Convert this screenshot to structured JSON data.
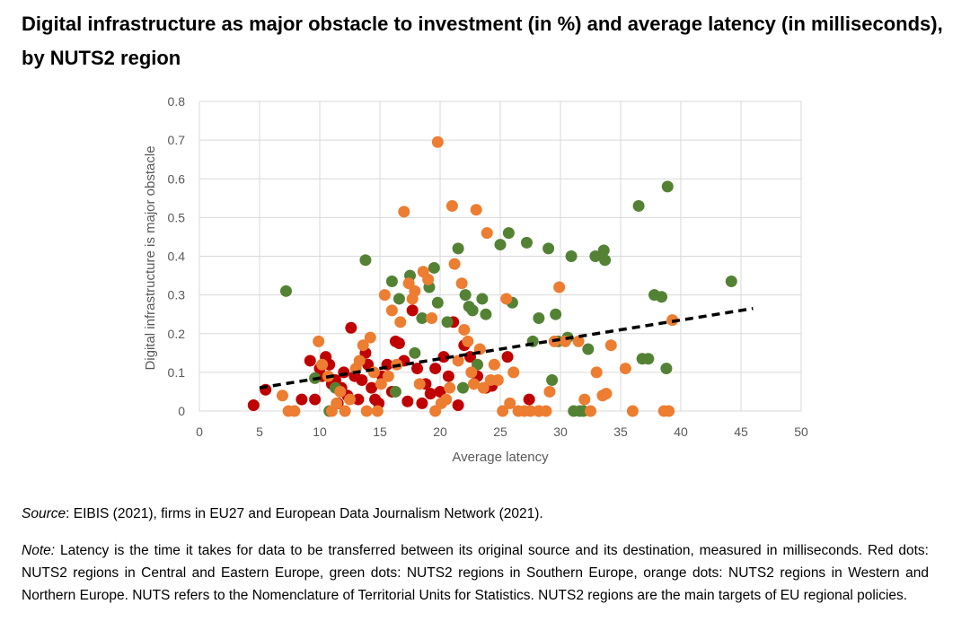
{
  "title": "Digital infrastructure as major obstacle to investment (in %) and average latency (in milliseconds), by NUTS2 region",
  "source": {
    "label": "Source",
    "text": ": EIBIS (2021), firms in EU27 and European Data Journalism Network (2021)."
  },
  "note": {
    "label": "Note:",
    "text": " Latency is the time it takes for data to be transferred between its original source and its destination, measured in milliseconds. Red dots: NUTS2 regions in Central and Eastern Europe, green dots: NUTS2 regions in Southern Europe, orange dots: NUTS2 regions in Western and Northern Europe. NUTS refers to the Nomenclature of Territorial Units for Statistics. NUTS2 regions are the main targets of EU regional policies."
  },
  "chart_data": {
    "type": "scatter",
    "xlabel": "Average latency",
    "ylabel": "Digital infrastructure is major obstacle",
    "xlim": [
      0,
      50
    ],
    "ylim": [
      0,
      0.8
    ],
    "xticks": [
      0,
      5,
      10,
      15,
      20,
      25,
      30,
      35,
      40,
      45,
      50
    ],
    "yticks": [
      0,
      0.1,
      0.2,
      0.3,
      0.4,
      0.5,
      0.6,
      0.7,
      0.8
    ],
    "ytick_labels": [
      "0",
      "0.1",
      "0.2",
      "0.3",
      "0.4",
      "0.5",
      "0.6",
      "0.7",
      "0.8"
    ],
    "grid": true,
    "legend": "none",
    "trendline": {
      "style": "dashed",
      "color": "#000000",
      "from": [
        5,
        0.06
      ],
      "to": [
        46,
        0.265
      ]
    },
    "series": [
      {
        "name": "Central and Eastern Europe",
        "color": "#C00000",
        "points": [
          [
            4.5,
            0.015
          ],
          [
            5.5,
            0.055
          ],
          [
            8.5,
            0.03
          ],
          [
            9.2,
            0.13
          ],
          [
            9.6,
            0.03
          ],
          [
            10,
            0.11
          ],
          [
            10.2,
            0.09
          ],
          [
            10.5,
            0.14
          ],
          [
            10.8,
            0.12
          ],
          [
            11,
            0.07
          ],
          [
            11.3,
            0.08
          ],
          [
            11.5,
            0.02
          ],
          [
            11.8,
            0.06
          ],
          [
            12,
            0.1
          ],
          [
            12.3,
            0.04
          ],
          [
            12.6,
            0.215
          ],
          [
            12.9,
            0.09
          ],
          [
            13.2,
            0.03
          ],
          [
            13.5,
            0.08
          ],
          [
            13.8,
            0.15
          ],
          [
            14,
            0.12
          ],
          [
            14.3,
            0.06
          ],
          [
            14.6,
            0.03
          ],
          [
            14.9,
            0.02
          ],
          [
            15.2,
            0.09
          ],
          [
            15.6,
            0.12
          ],
          [
            16,
            0.05
          ],
          [
            16.3,
            0.18
          ],
          [
            16.6,
            0.175
          ],
          [
            17,
            0.13
          ],
          [
            17.3,
            0.025
          ],
          [
            17.7,
            0.26
          ],
          [
            18.1,
            0.11
          ],
          [
            18.5,
            0.02
          ],
          [
            18.8,
            0.07
          ],
          [
            19.2,
            0.045
          ],
          [
            19.6,
            0.11
          ],
          [
            20,
            0.05
          ],
          [
            20.3,
            0.14
          ],
          [
            20.7,
            0.09
          ],
          [
            21.1,
            0.23
          ],
          [
            21.5,
            0.015
          ],
          [
            22,
            0.17
          ],
          [
            22.5,
            0.14
          ],
          [
            23.1,
            0.09
          ],
          [
            23.8,
            0.06
          ],
          [
            24.3,
            0.065
          ],
          [
            25.6,
            0.14
          ],
          [
            27.4,
            0.03
          ],
          [
            28.2,
            0.0
          ]
        ]
      },
      {
        "name": "Southern Europe",
        "color": "#548235",
        "points": [
          [
            7.2,
            0.31
          ],
          [
            9.6,
            0.085
          ],
          [
            10.8,
            0.0
          ],
          [
            11.3,
            0.06
          ],
          [
            13.8,
            0.39
          ],
          [
            16,
            0.335
          ],
          [
            16.3,
            0.05
          ],
          [
            16.6,
            0.29
          ],
          [
            17.5,
            0.35
          ],
          [
            17.9,
            0.15
          ],
          [
            18.5,
            0.24
          ],
          [
            19.1,
            0.32
          ],
          [
            19.5,
            0.37
          ],
          [
            19.8,
            0.28
          ],
          [
            20.6,
            0.23
          ],
          [
            21.5,
            0.42
          ],
          [
            21.9,
            0.06
          ],
          [
            22.1,
            0.3
          ],
          [
            22.4,
            0.27
          ],
          [
            22.7,
            0.26
          ],
          [
            23.1,
            0.12
          ],
          [
            23.5,
            0.29
          ],
          [
            23.8,
            0.25
          ],
          [
            25,
            0.43
          ],
          [
            25.7,
            0.46
          ],
          [
            26,
            0.28
          ],
          [
            27.2,
            0.435
          ],
          [
            27.7,
            0.18
          ],
          [
            28.2,
            0.24
          ],
          [
            29,
            0.42
          ],
          [
            29.3,
            0.08
          ],
          [
            29.6,
            0.25
          ],
          [
            29.8,
            0.18
          ],
          [
            30.6,
            0.19
          ],
          [
            30.9,
            0.4
          ],
          [
            31.1,
            0.0
          ],
          [
            31.6,
            0.0
          ],
          [
            31.9,
            0.0
          ],
          [
            32.3,
            0.16
          ],
          [
            32.9,
            0.4
          ],
          [
            33.6,
            0.415
          ],
          [
            33.7,
            0.39
          ],
          [
            36.5,
            0.53
          ],
          [
            36.8,
            0.135
          ],
          [
            37.3,
            0.135
          ],
          [
            37.8,
            0.3
          ],
          [
            38.4,
            0.295
          ],
          [
            38.8,
            0.11
          ],
          [
            38.9,
            0.58
          ],
          [
            44.2,
            0.335
          ]
        ]
      },
      {
        "name": "Western and Northern Europe",
        "color": "#ED7D31",
        "points": [
          [
            6.9,
            0.04
          ],
          [
            7.4,
            0.0
          ],
          [
            7.9,
            0.0
          ],
          [
            9.9,
            0.18
          ],
          [
            10.2,
            0.12
          ],
          [
            10.7,
            0.09
          ],
          [
            11,
            0.0
          ],
          [
            11.4,
            0.02
          ],
          [
            11.7,
            0.05
          ],
          [
            12.1,
            0.0
          ],
          [
            12.5,
            0.03
          ],
          [
            13,
            0.11
          ],
          [
            13.3,
            0.13
          ],
          [
            13.6,
            0.17
          ],
          [
            13.9,
            0.0
          ],
          [
            14.2,
            0.19
          ],
          [
            14.5,
            0.1
          ],
          [
            14.8,
            0.0
          ],
          [
            15.1,
            0.07
          ],
          [
            15.4,
            0.3
          ],
          [
            15.7,
            0.09
          ],
          [
            16,
            0.26
          ],
          [
            16.4,
            0.12
          ],
          [
            16.7,
            0.23
          ],
          [
            17,
            0.515
          ],
          [
            17.4,
            0.33
          ],
          [
            17.7,
            0.29
          ],
          [
            17.9,
            0.31
          ],
          [
            18.3,
            0.07
          ],
          [
            18.6,
            0.36
          ],
          [
            19,
            0.34
          ],
          [
            19.3,
            0.24
          ],
          [
            19.6,
            0.0
          ],
          [
            19.8,
            0.695
          ],
          [
            20.1,
            0.02
          ],
          [
            20.5,
            0.03
          ],
          [
            20.8,
            0.06
          ],
          [
            21,
            0.53
          ],
          [
            21.2,
            0.38
          ],
          [
            21.5,
            0.13
          ],
          [
            21.8,
            0.33
          ],
          [
            22,
            0.21
          ],
          [
            22.3,
            0.18
          ],
          [
            22.6,
            0.1
          ],
          [
            22.8,
            0.07
          ],
          [
            23,
            0.52
          ],
          [
            23.3,
            0.16
          ],
          [
            23.6,
            0.06
          ],
          [
            23.9,
            0.46
          ],
          [
            24.2,
            0.08
          ],
          [
            24.5,
            0.12
          ],
          [
            24.8,
            0.08
          ],
          [
            25.2,
            0.0
          ],
          [
            25.5,
            0.29
          ],
          [
            25.8,
            0.02
          ],
          [
            26.1,
            0.1
          ],
          [
            26.5,
            0.0
          ],
          [
            27,
            0.0
          ],
          [
            27.5,
            0.0
          ],
          [
            28.2,
            0.0
          ],
          [
            28.8,
            0.0
          ],
          [
            29.1,
            0.05
          ],
          [
            29.5,
            0.18
          ],
          [
            29.9,
            0.32
          ],
          [
            30.4,
            0.18
          ],
          [
            31.5,
            0.18
          ],
          [
            32,
            0.03
          ],
          [
            32.5,
            0.0
          ],
          [
            33,
            0.1
          ],
          [
            33.5,
            0.04
          ],
          [
            33.8,
            0.045
          ],
          [
            34.2,
            0.17
          ],
          [
            35.4,
            0.11
          ],
          [
            36,
            0.0
          ],
          [
            38.6,
            0.0
          ],
          [
            39,
            0.0
          ],
          [
            39.3,
            0.235
          ]
        ]
      }
    ]
  }
}
